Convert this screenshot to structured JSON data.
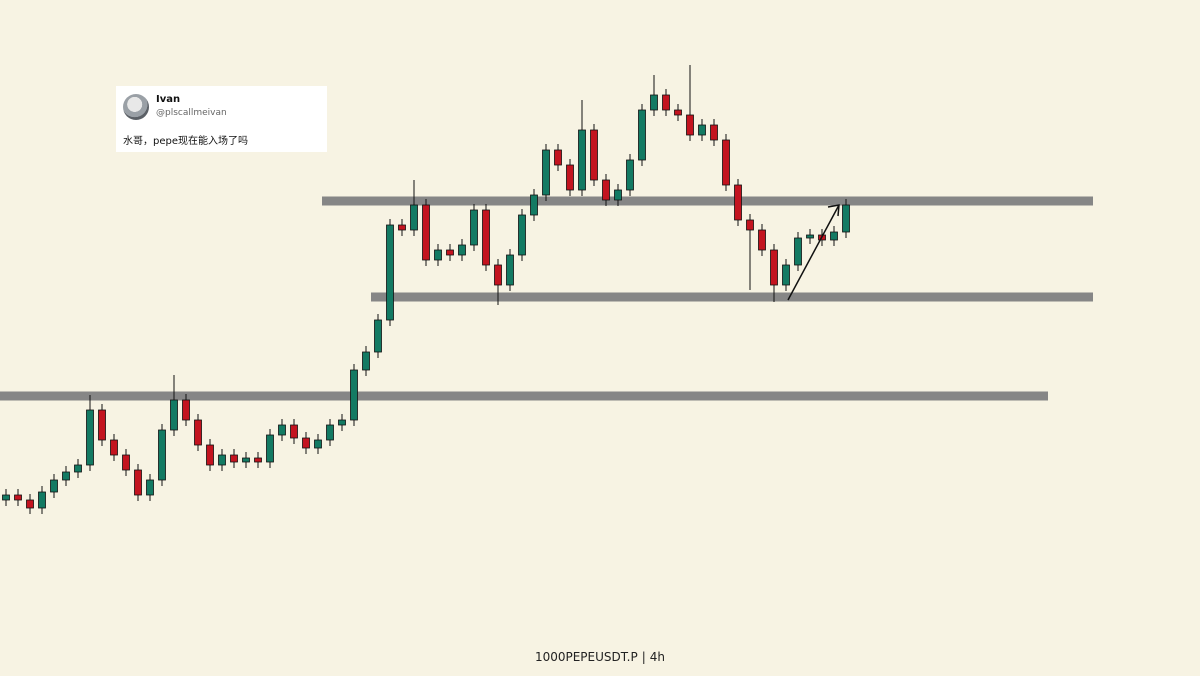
{
  "chart_data": {
    "type": "candlestick",
    "symbol": "1000PEPEUSDT.P",
    "interval": "4h",
    "up_color": "#137a63",
    "down_color": "#c3131f",
    "level_color": "#868686",
    "ylim": [
      0,
      676
    ],
    "open": [
      176,
      181,
      176,
      168,
      184,
      196,
      204,
      211,
      266,
      236,
      221,
      206,
      181,
      196,
      246,
      276,
      256,
      231,
      211,
      221,
      214,
      218,
      214,
      241,
      251,
      238,
      228,
      236,
      251,
      256,
      306,
      324,
      356,
      451,
      446,
      471,
      416,
      426,
      421,
      431,
      466,
      411,
      391,
      421,
      461,
      481,
      526,
      511,
      486,
      546,
      496,
      476,
      486,
      516,
      566,
      581,
      566,
      561,
      541,
      551,
      536,
      491,
      456,
      446,
      426,
      391,
      411,
      438,
      441,
      436,
      444
    ],
    "high": [
      187,
      187,
      182,
      190,
      202,
      210,
      217,
      281,
      272,
      242,
      227,
      212,
      202,
      252,
      301,
      282,
      262,
      237,
      227,
      227,
      224,
      224,
      247,
      257,
      257,
      244,
      242,
      257,
      262,
      312,
      330,
      362,
      457,
      457,
      496,
      477,
      432,
      432,
      437,
      472,
      472,
      417,
      427,
      467,
      487,
      532,
      532,
      517,
      576,
      552,
      502,
      492,
      522,
      572,
      601,
      587,
      572,
      611,
      557,
      557,
      542,
      497,
      462,
      452,
      432,
      417,
      444,
      447,
      447,
      450,
      477
    ],
    "low": [
      170,
      170,
      162,
      162,
      178,
      190,
      198,
      205,
      230,
      215,
      200,
      175,
      175,
      190,
      240,
      250,
      225,
      205,
      205,
      208,
      208,
      208,
      208,
      235,
      232,
      222,
      222,
      230,
      245,
      250,
      300,
      318,
      350,
      440,
      440,
      410,
      410,
      415,
      415,
      425,
      405,
      371,
      385,
      415,
      455,
      475,
      505,
      480,
      480,
      490,
      470,
      470,
      480,
      510,
      560,
      560,
      555,
      535,
      535,
      530,
      485,
      450,
      386,
      420,
      374,
      385,
      405,
      432,
      430,
      430,
      438
    ],
    "close": [
      181,
      176,
      168,
      184,
      196,
      204,
      211,
      266,
      236,
      221,
      206,
      181,
      196,
      246,
      276,
      256,
      231,
      211,
      221,
      214,
      218,
      214,
      241,
      251,
      238,
      228,
      236,
      251,
      256,
      306,
      324,
      356,
      451,
      446,
      471,
      416,
      426,
      421,
      431,
      466,
      411,
      391,
      421,
      461,
      481,
      526,
      511,
      486,
      546,
      496,
      476,
      486,
      516,
      566,
      581,
      566,
      561,
      541,
      551,
      536,
      491,
      456,
      446,
      426,
      391,
      411,
      438,
      441,
      436,
      444,
      471
    ],
    "levels": [
      475,
      379,
      280
    ]
  },
  "tweet": {
    "name": "Ivan",
    "handle": "@plscallmeivan",
    "text": "水哥，pepe现在能入场了吗"
  }
}
